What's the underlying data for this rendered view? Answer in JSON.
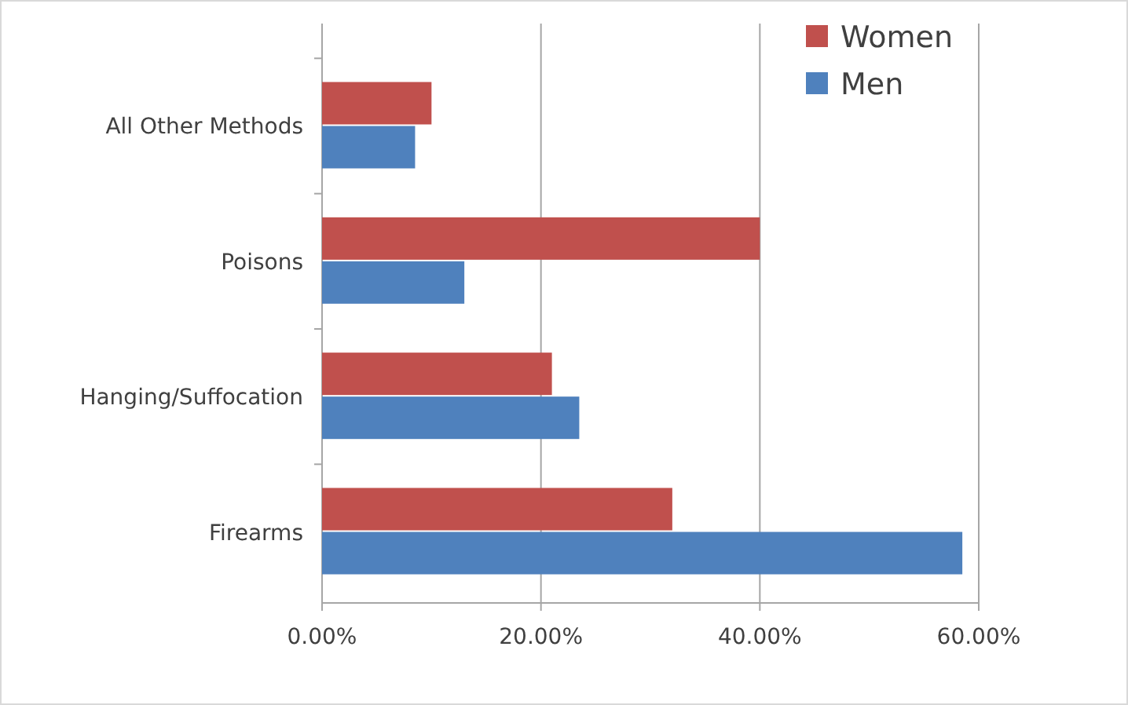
{
  "chart_data": {
    "type": "bar",
    "orientation": "horizontal",
    "categories": [
      "All Other Methods",
      "Poisons",
      "Hanging/Suffocation",
      "Firearms"
    ],
    "series": [
      {
        "name": "Women",
        "color": "#c0504d",
        "values": [
          10,
          40,
          21,
          32
        ]
      },
      {
        "name": "Men",
        "color": "#4f81bd",
        "values": [
          8.5,
          13,
          23.5,
          58.5
        ]
      }
    ],
    "xlim": [
      0,
      60
    ],
    "xticks": [
      {
        "value": 0,
        "label": "0.00%"
      },
      {
        "value": 20,
        "label": "20.00%"
      },
      {
        "value": 40,
        "label": "40.00%"
      },
      {
        "value": 60,
        "label": "60.00%"
      }
    ],
    "grid": "x",
    "legend": "top right"
  }
}
